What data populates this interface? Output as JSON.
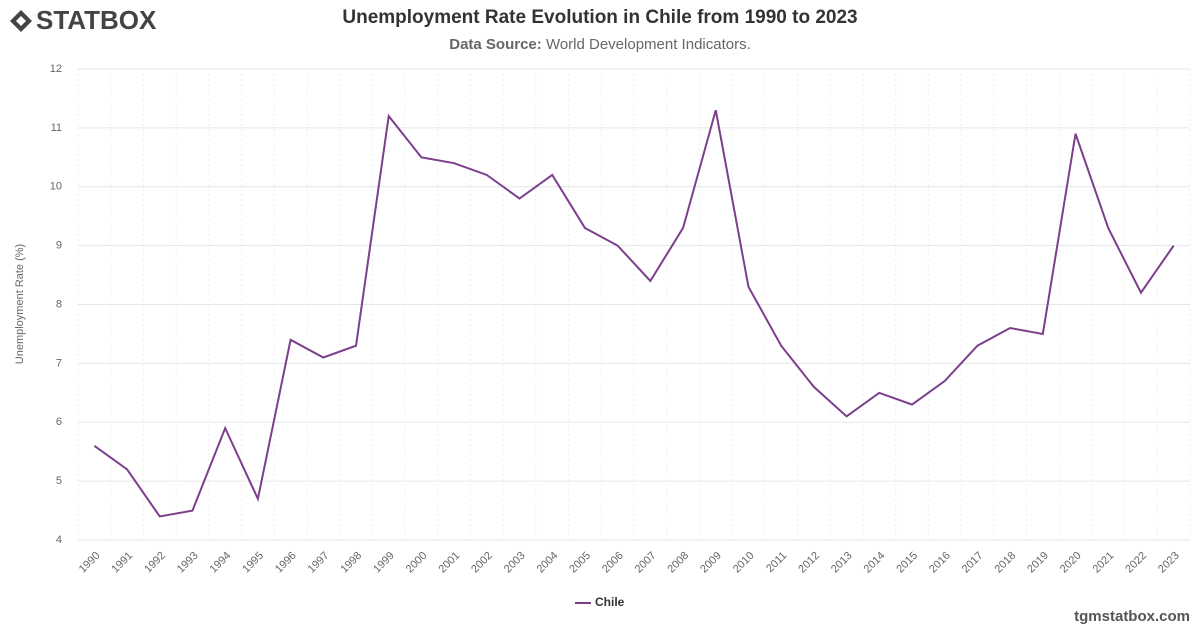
{
  "brand": {
    "logo": "STATBOX",
    "watermark": "tgmstatbox.com"
  },
  "chart_data": {
    "type": "line",
    "title": "Unemployment Rate Evolution in Chile from 1990 to 2023",
    "subtitle_label": "Data Source:",
    "subtitle": "World Development Indicators.",
    "y_label": "Unemployment Rate (%)",
    "categories": [
      "1990",
      "1991",
      "1992",
      "1993",
      "1994",
      "1995",
      "1996",
      "1997",
      "1998",
      "1999",
      "2000",
      "2001",
      "2002",
      "2003",
      "2004",
      "2005",
      "2006",
      "2007",
      "2008",
      "2009",
      "2010",
      "2011",
      "2012",
      "2013",
      "2014",
      "2015",
      "2016",
      "2017",
      "2018",
      "2019",
      "2020",
      "2021",
      "2022",
      "2023"
    ],
    "series": [
      {
        "name": "Chile",
        "color": "#7b3f8c",
        "values": [
          5.6,
          5.2,
          4.4,
          4.5,
          5.9,
          4.7,
          7.4,
          7.1,
          7.3,
          11.2,
          10.5,
          10.4,
          10.2,
          9.8,
          10.2,
          9.3,
          9.0,
          8.4,
          9.3,
          11.3,
          8.3,
          7.3,
          6.6,
          6.1,
          6.5,
          6.3,
          6.7,
          7.3,
          7.6,
          7.5,
          10.9,
          9.3,
          8.2,
          9.0
        ]
      }
    ],
    "ylim": [
      4,
      12
    ],
    "yticks": [
      4,
      5,
      6,
      7,
      8,
      9,
      10,
      11,
      12
    ],
    "grid": true,
    "legend": "bottom"
  }
}
